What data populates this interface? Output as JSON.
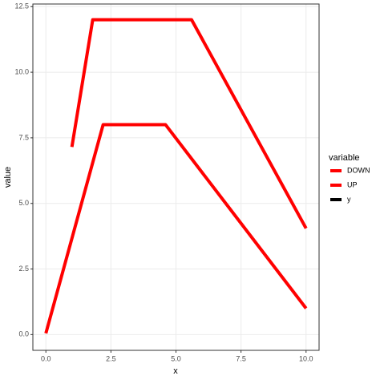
{
  "chart_data": {
    "type": "line",
    "x_label": "x",
    "y_label": "value",
    "legend_title": "variable",
    "xlim": [
      -0.5,
      10.5
    ],
    "ylim": [
      -0.6,
      12.6
    ],
    "xticks": [
      {
        "value": 0,
        "label": "0.0"
      },
      {
        "value": 2.5,
        "label": "2.5"
      },
      {
        "value": 5,
        "label": "5.0"
      },
      {
        "value": 7.5,
        "label": "7.5"
      },
      {
        "value": 10,
        "label": "10.0"
      }
    ],
    "yticks": [
      {
        "value": 0,
        "label": "0.0"
      },
      {
        "value": 2.5,
        "label": "2.5"
      },
      {
        "value": 5,
        "label": "5.0"
      },
      {
        "value": 7.5,
        "label": "7.5"
      },
      {
        "value": 10,
        "label": "10.0"
      },
      {
        "value": 12.5,
        "label": "12.5"
      }
    ],
    "grid": true,
    "series": [
      {
        "name": "DOWN",
        "color": "#ff0000",
        "x": [
          0,
          2.2,
          4.6,
          10
        ],
        "values": [
          0.05,
          8,
          8,
          1
        ]
      },
      {
        "name": "UP",
        "color": "#ff0000",
        "x": [
          1,
          1.8,
          5.6,
          10
        ],
        "values": [
          7.15,
          12,
          12,
          4.05
        ]
      },
      {
        "name": "y",
        "color": "#000000",
        "x": [],
        "values": []
      }
    ]
  }
}
